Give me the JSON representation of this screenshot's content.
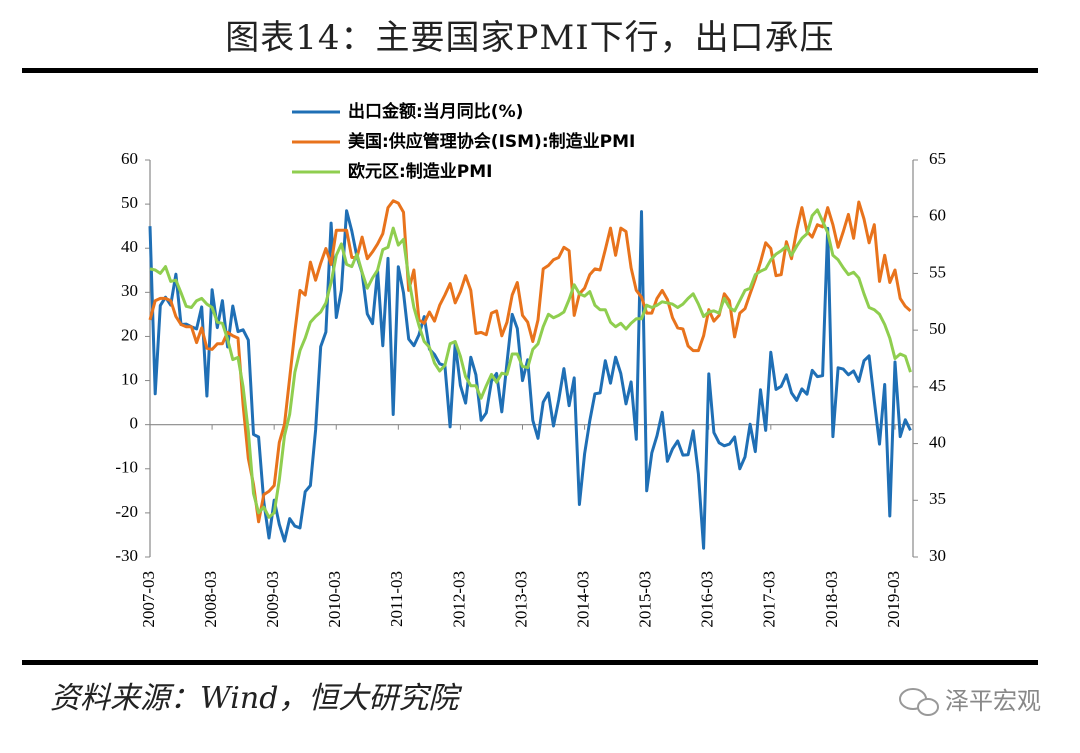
{
  "title": "图表14：主要国家PMI下行，出口承压",
  "source": "资料来源：Wind，恒大研究院",
  "watermark": "泽平宏观",
  "chart_data": {
    "type": "line",
    "categories": [
      "2007-03",
      null,
      null,
      null,
      null,
      null,
      null,
      null,
      null,
      null,
      null,
      null,
      "2008-03",
      null,
      null,
      null,
      null,
      null,
      null,
      null,
      null,
      null,
      null,
      null,
      "2009-03",
      null,
      null,
      null,
      null,
      null,
      null,
      null,
      null,
      null,
      null,
      null,
      "2010-03",
      null,
      null,
      null,
      null,
      null,
      null,
      null,
      null,
      null,
      null,
      null,
      "2011-03",
      null,
      null,
      null,
      null,
      null,
      null,
      null,
      null,
      null,
      null,
      null,
      "2012-03",
      null,
      null,
      null,
      null,
      null,
      null,
      null,
      null,
      null,
      null,
      null,
      "2013-03",
      null,
      null,
      null,
      null,
      null,
      null,
      null,
      null,
      null,
      null,
      null,
      "2014-03",
      null,
      null,
      null,
      null,
      null,
      null,
      null,
      null,
      null,
      null,
      null,
      "2015-03",
      null,
      null,
      null,
      null,
      null,
      null,
      null,
      null,
      null,
      null,
      null,
      "2016-03",
      null,
      null,
      null,
      null,
      null,
      null,
      null,
      null,
      null,
      null,
      null,
      "2017-03",
      null,
      null,
      null,
      null,
      null,
      null,
      null,
      null,
      null,
      null,
      null,
      "2018-03",
      null,
      null,
      null,
      null,
      null,
      null,
      null,
      null,
      null,
      null,
      null,
      "2019-03",
      null,
      null,
      null
    ],
    "ylim": [
      -30,
      60
    ],
    "yticks": [
      60,
      50,
      40,
      30,
      20,
      10,
      0,
      -10,
      -20,
      -30
    ],
    "y2lim": [
      30,
      65
    ],
    "y2ticks": [
      65,
      60,
      55,
      50,
      45,
      40,
      35,
      30
    ],
    "series": [
      {
        "name": "出口金额:当月同比(%)",
        "color": "#1f6fb5",
        "axis": "y",
        "values": [
          45,
          7,
          27,
          28.9,
          27.1,
          34.1,
          22.7,
          22.8,
          22.2,
          21.7,
          26.7,
          6.5,
          30.6,
          22,
          28.1,
          17.6,
          26.9,
          21.1,
          21.5,
          19.2,
          -2.2,
          -2.8,
          -17.5,
          -25.7,
          -17.1,
          -22.6,
          -26.4,
          -21.3,
          -23,
          -23.4,
          -15.2,
          -13.8,
          -1.2,
          17.7,
          21,
          45.7,
          24.3,
          30.5,
          48.5,
          43.9,
          38.1,
          34.4,
          25.1,
          22.9,
          34.9,
          17.9,
          37.7,
          2.3,
          35.8,
          29.9,
          19.4,
          17.9,
          20.4,
          24.5,
          17.1,
          15.9,
          13.8,
          13.4,
          -0.5,
          18.4,
          8.9,
          4.9,
          15.3,
          11.3,
          1,
          2.7,
          9.9,
          11.6,
          2.9,
          14.1,
          25,
          21.8,
          10,
          14.7,
          1,
          -3.1,
          5.1,
          7.2,
          -0.3,
          5.6,
          12.7,
          4.3,
          10.6,
          -18.1,
          -6.6,
          0.9,
          7,
          7.2,
          14.5,
          9.4,
          15.3,
          11.6,
          4.7,
          9.7,
          -3.3,
          48.3,
          -15,
          -6.4,
          -2.5,
          2.8,
          -8.3,
          -5.5,
          -3.7,
          -6.9,
          -6.8,
          -1.4,
          -11.2,
          -28,
          11.5,
          -1.8,
          -4.1,
          -4.8,
          -4.4,
          -2.8,
          -10,
          -7.3,
          0.1,
          -6.1,
          7.9,
          -1.3,
          16.4,
          8,
          8.7,
          11.3,
          7.2,
          5.5,
          8.1,
          6.9,
          12.3,
          10.9,
          11.1,
          44.5,
          -2.7,
          12.9,
          12.6,
          11.3,
          12.2,
          9.8,
          14.5,
          15.6,
          5.4,
          -4.4,
          9.1,
          -20.7,
          14.2,
          -2.7,
          1.1,
          -1.3
        ]
      },
      {
        "name": "美国:供应管理协会(ISM):制造业PMI",
        "color": "#e8731c",
        "axis": "y2",
        "values": [
          50.9,
          52.6,
          52.8,
          52.8,
          52.6,
          51.2,
          50.5,
          50.3,
          50.3,
          48.9,
          50.2,
          48.4,
          48.3,
          48.8,
          48.8,
          49.8,
          49.5,
          49.3,
          43.4,
          38.7,
          36.4,
          33.1,
          35.5,
          35.8,
          36.3,
          40.1,
          41.7,
          45.8,
          49.9,
          53.5,
          53.1,
          56,
          54.4,
          55.9,
          57.2,
          55.8,
          58.8,
          58.8,
          58.8,
          56.4,
          56.4,
          58.2,
          56.3,
          56.9,
          57.6,
          58.5,
          60.8,
          61.4,
          61.2,
          60.4,
          53.5,
          55.3,
          50.9,
          50.6,
          51.6,
          50.8,
          52.2,
          53.1,
          54.1,
          52.4,
          53.4,
          54.8,
          53.5,
          49.7,
          49.8,
          49.6,
          51.5,
          51.7,
          49.5,
          50.7,
          53.1,
          54.2,
          51.3,
          50.7,
          49,
          50.9,
          55.4,
          55.7,
          56.2,
          56.4,
          57.3,
          57,
          51.3,
          53.2,
          53.7,
          54.9,
          55.4,
          55.3,
          57.1,
          59,
          56.6,
          59,
          58.7,
          55.5,
          53.5,
          52.9,
          51.5,
          51.5,
          52.8,
          53.5,
          52.7,
          51.1,
          50.2,
          50.1,
          48.6,
          48.2,
          48.2,
          49.5,
          51.8,
          50.8,
          51.3,
          53.2,
          52.6,
          49.4,
          51.5,
          51.9,
          53.2,
          54.5,
          56,
          57.7,
          57.2,
          54.8,
          54.9,
          57.8,
          56.3,
          58.8,
          60.8,
          58.7,
          58.2,
          59.3,
          59.1,
          60.8,
          59.3,
          57.3,
          58.7,
          60.2,
          58.1,
          61.3,
          59.8,
          57.7,
          59.3,
          54.3,
          56.6,
          54.2,
          55.3,
          52.8,
          52.1,
          51.7
        ]
      },
      {
        "name": "欧元区:制造业PMI",
        "color": "#8fce4f",
        "axis": "y2",
        "values": [
          55.4,
          55.3,
          55.0,
          55.6,
          54.3,
          54.4,
          53.3,
          52.1,
          52.0,
          52.6,
          52.8,
          52.3,
          52.0,
          50.7,
          50.6,
          49.2,
          47.4,
          47.6,
          45.0,
          41.1,
          35.6,
          33.9,
          34.4,
          33.5,
          33.9,
          36.8,
          40.7,
          42.6,
          46.3,
          48.2,
          49.3,
          50.7,
          51.2,
          51.6,
          52.4,
          54.2,
          56.6,
          57.6,
          55.8,
          55.6,
          56.7,
          55.1,
          53.7,
          54.6,
          55.3,
          57.1,
          57.3,
          59,
          57.5,
          58,
          54.6,
          52,
          50.4,
          49,
          48.5,
          47.1,
          46.4,
          46.9,
          48.8,
          49,
          47.7,
          45.9,
          45.1,
          45.1,
          44,
          45.1,
          46.1,
          45.4,
          46.2,
          46.1,
          47.9,
          47.9,
          46.8,
          46.7,
          48.3,
          48.8,
          50.3,
          51.4,
          51.1,
          51.3,
          51.6,
          52.7,
          54,
          53.2,
          53,
          53.4,
          52.2,
          51.8,
          51.8,
          50.7,
          50.3,
          50.6,
          50.1,
          50.6,
          51,
          51,
          52.2,
          52,
          52.2,
          52.5,
          52.4,
          52.3,
          52,
          52.3,
          52.8,
          53.2,
          52.3,
          51.2,
          51.6,
          51.7,
          51.5,
          52.8,
          52,
          51.7,
          52.6,
          53.5,
          53.7,
          54.9,
          55.2,
          55.4,
          56.2,
          56.7,
          57,
          57.4,
          56.6,
          57.4,
          58.1,
          58.5,
          60.1,
          60.6,
          59.6,
          58.6,
          56.6,
          56.2,
          55.5,
          54.9,
          55.1,
          54.6,
          53.2,
          52,
          51.8,
          51.4,
          50.5,
          49.3,
          47.5,
          47.9,
          47.7,
          46.3
        ]
      }
    ]
  }
}
